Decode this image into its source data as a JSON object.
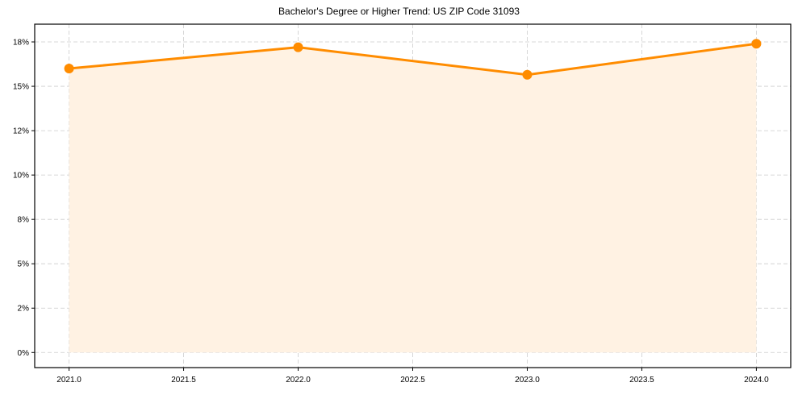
{
  "chart_data": {
    "type": "line",
    "title": "Bachelor's Degree or Higher Trend: US ZIP Code 31093",
    "xlabel": "",
    "ylabel": "",
    "x": [
      2021,
      2022,
      2023,
      2024
    ],
    "series": [
      {
        "name": "Bachelor's Degree or Higher",
        "values": [
          16.0,
          17.2,
          15.65,
          17.4
        ],
        "color": "#FF8C00",
        "fill_color": "#FFF2E3",
        "marker": "circle"
      }
    ],
    "xlim": [
      2020.85,
      2024.15
    ],
    "ylim": [
      -0.85,
      18.5
    ],
    "x_ticks": [
      2021.0,
      2021.5,
      2022.0,
      2022.5,
      2023.0,
      2023.5,
      2024.0
    ],
    "x_tick_labels": [
      "2021.0",
      "2021.5",
      "2022.0",
      "2022.5",
      "2023.0",
      "2023.5",
      "2024.0"
    ],
    "y_ticks": [
      0,
      2.5,
      5,
      7.5,
      10,
      12.5,
      15,
      17.5
    ],
    "y_tick_labels": [
      "0%",
      "2%",
      "5%",
      "8%",
      "10%",
      "12%",
      "15%",
      "18%"
    ],
    "grid": true,
    "grid_style": "dashed",
    "legend": null
  }
}
